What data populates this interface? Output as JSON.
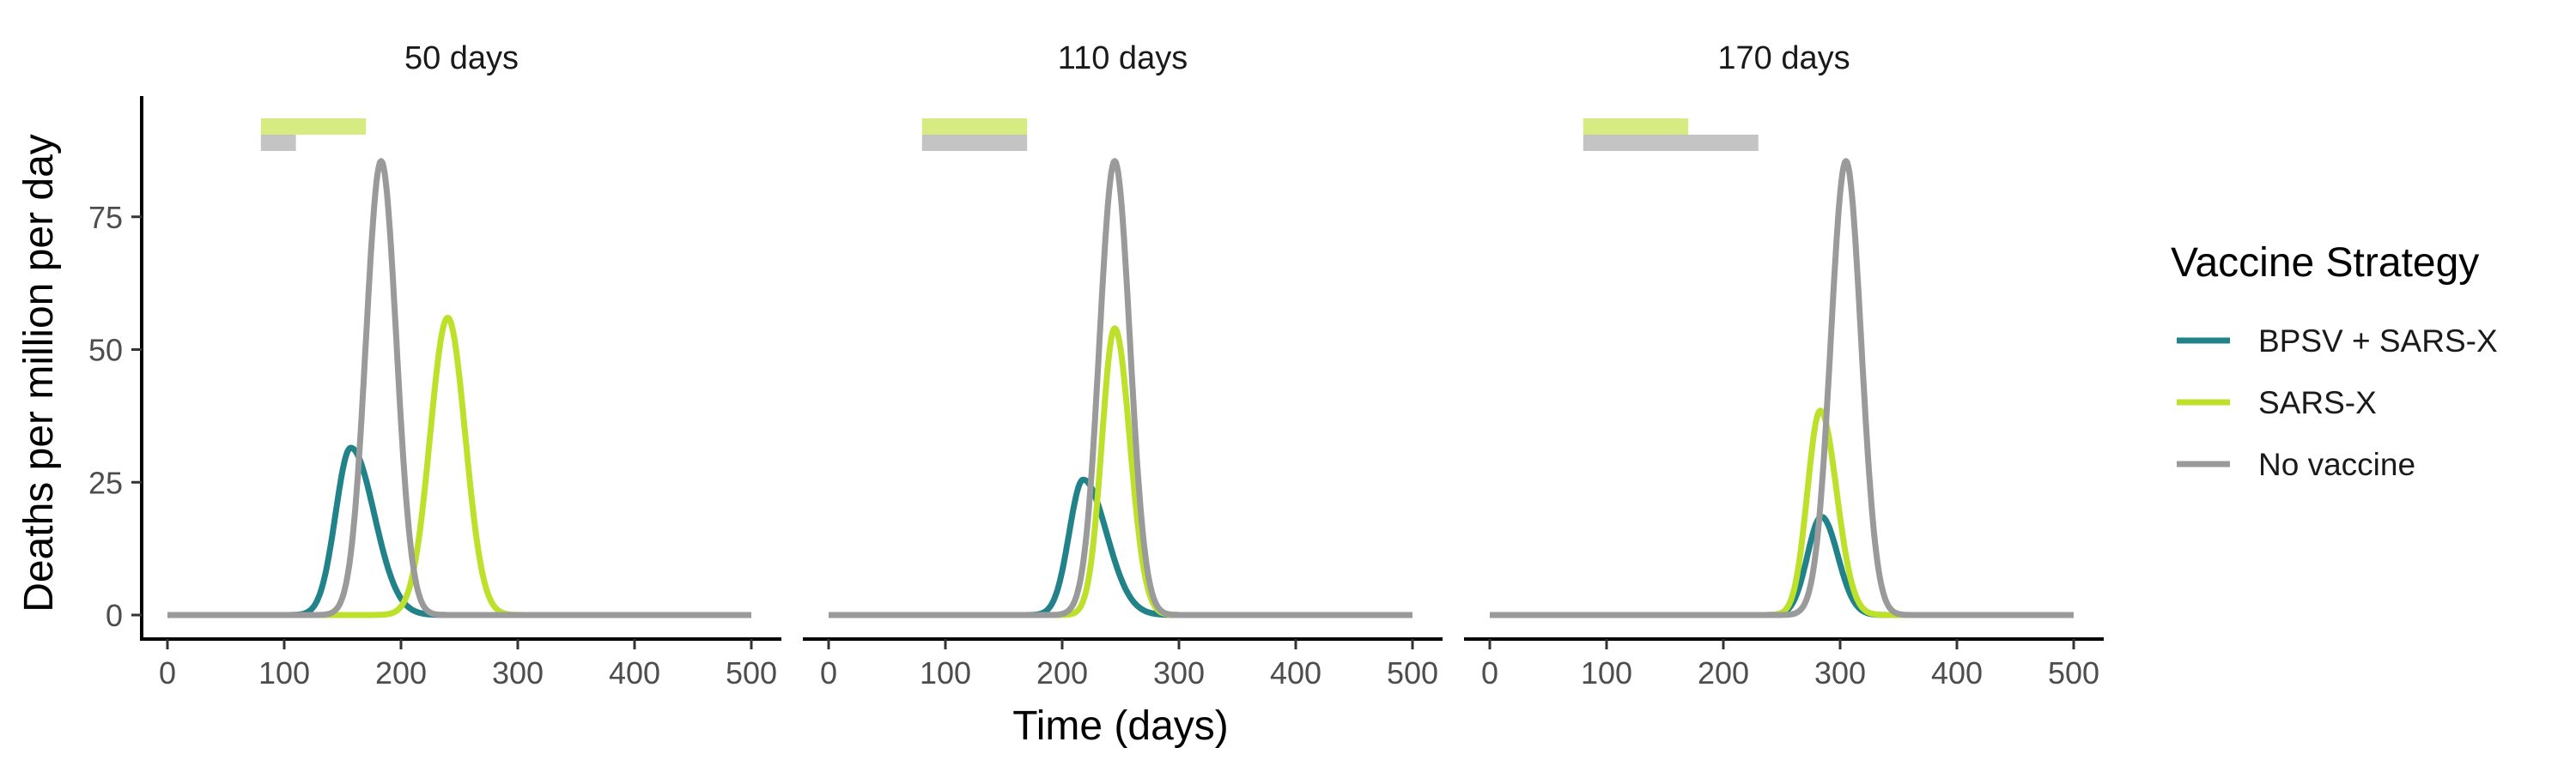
{
  "chart_data": {
    "type": "line",
    "xlabel": "Time (days)",
    "ylabel": "Deaths per million per day",
    "xlim": [
      0,
      500
    ],
    "ylim": [
      0,
      95
    ],
    "xticks": [
      0,
      100,
      200,
      300,
      400,
      500
    ],
    "yticks": [
      0,
      25,
      50,
      75
    ],
    "grid": false,
    "legend": {
      "title": "Vaccine Strategy",
      "position": "right",
      "entries": [
        "BPSV + SARS-X",
        "SARS-X",
        "No vaccine"
      ]
    },
    "colors": {
      "BPSV + SARS-X": "#218389",
      "SARS-X": "#bde12b",
      "No vaccine": "#9a9a9a",
      "bar_sarsx": "#d6ec83",
      "bar_novax": "#c4c4c4"
    },
    "panels": [
      {
        "title": "50 days",
        "bars": {
          "sarsx": [
            80,
            170
          ],
          "novax": [
            80,
            110
          ]
        },
        "series": [
          {
            "name": "BPSV + SARS-X",
            "peak_x": 157,
            "peak_y": 31.5,
            "sd_left": 13,
            "sd_right": 20
          },
          {
            "name": "SARS-X",
            "peak_x": 240,
            "peak_y": 56,
            "sd_left": 15,
            "sd_right": 15
          },
          {
            "name": "No vaccine",
            "peak_x": 183,
            "peak_y": 85.5,
            "sd_left": 13,
            "sd_right": 13
          }
        ]
      },
      {
        "title": "110 days",
        "bars": {
          "sarsx": [
            80,
            170
          ],
          "novax": [
            80,
            170
          ]
        },
        "series": [
          {
            "name": "BPSV + SARS-X",
            "peak_x": 218,
            "peak_y": 25.5,
            "sd_left": 12,
            "sd_right": 20
          },
          {
            "name": "SARS-X",
            "peak_x": 245,
            "peak_y": 54,
            "sd_left": 11,
            "sd_right": 13
          },
          {
            "name": "No vaccine",
            "peak_x": 245,
            "peak_y": 85.5,
            "sd_left": 13,
            "sd_right": 13
          }
        ]
      },
      {
        "title": "170 days",
        "bars": {
          "sarsx": [
            80,
            170
          ],
          "novax": [
            80,
            230
          ]
        },
        "series": [
          {
            "name": "BPSV + SARS-X",
            "peak_x": 284,
            "peak_y": 18.5,
            "sd_left": 12,
            "sd_right": 14
          },
          {
            "name": "SARS-X",
            "peak_x": 283,
            "peak_y": 38.5,
            "sd_left": 11,
            "sd_right": 14
          },
          {
            "name": "No vaccine",
            "peak_x": 305,
            "peak_y": 85.5,
            "sd_left": 13,
            "sd_right": 13
          }
        ]
      }
    ]
  }
}
